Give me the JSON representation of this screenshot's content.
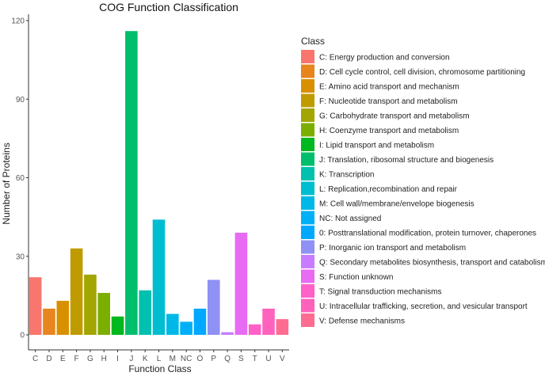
{
  "chart_data": {
    "type": "bar",
    "title": "COG Function Classification",
    "xlabel": "Function Class",
    "ylabel": "Number of Proteins",
    "ylim": [
      0,
      120
    ],
    "yticks": [
      0,
      30,
      60,
      90,
      120
    ],
    "grid": false,
    "legend_position": "right",
    "legend_title": "Class",
    "categories": [
      "C",
      "D",
      "E",
      "F",
      "G",
      "H",
      "I",
      "J",
      "K",
      "L",
      "M",
      "NC",
      "O",
      "P",
      "Q",
      "S",
      "T",
      "U",
      "V"
    ],
    "values": [
      22,
      10,
      13,
      33,
      23,
      16,
      7,
      116,
      17,
      44,
      8,
      5,
      10,
      21,
      1,
      39,
      4,
      10,
      6
    ],
    "colors": [
      "#F8766D",
      "#E7851E",
      "#D89000",
      "#C09B00",
      "#A3A500",
      "#7CAE00",
      "#00B81F",
      "#00BE6C",
      "#00C0AF",
      "#00BDD0",
      "#00B8E7",
      "#00B0F6",
      "#00A9FF",
      "#8F91F5",
      "#C77CFF",
      "#E76BF3",
      "#FF61C9",
      "#FF62BC",
      "#FF6C91"
    ],
    "legend_entries": [
      "C: Energy production and conversion",
      "D: Cell cycle control, cell division, chromosome partitioning",
      "E: Amino acid transport and mechanism",
      "F: Nucleotide transport and metabolism",
      "G: Carbohydrate transport and metabolism",
      "H: Coenzyme transport and metabolism",
      "I: Lipid transport and metabolism",
      "J: Translation, ribosomal structure and biogenesis",
      "K: Transcription",
      "L: Replication,recombination and repair",
      "M: Cell wall/membrane/envelope biogenesis",
      "NC: Not assigned",
      "0: Posttranslational modification, protein turnover, chaperones",
      "P: Inorganic ion transport and metabolism",
      "Q: Secondary metabolites biosynthesis, transport and catabolism",
      "S: Function unknown",
      "T: Signal transduction mechanisms",
      "U: Intracellular trafficking, secretion, and vesicular transport",
      "V: Defense mechanisms"
    ]
  }
}
